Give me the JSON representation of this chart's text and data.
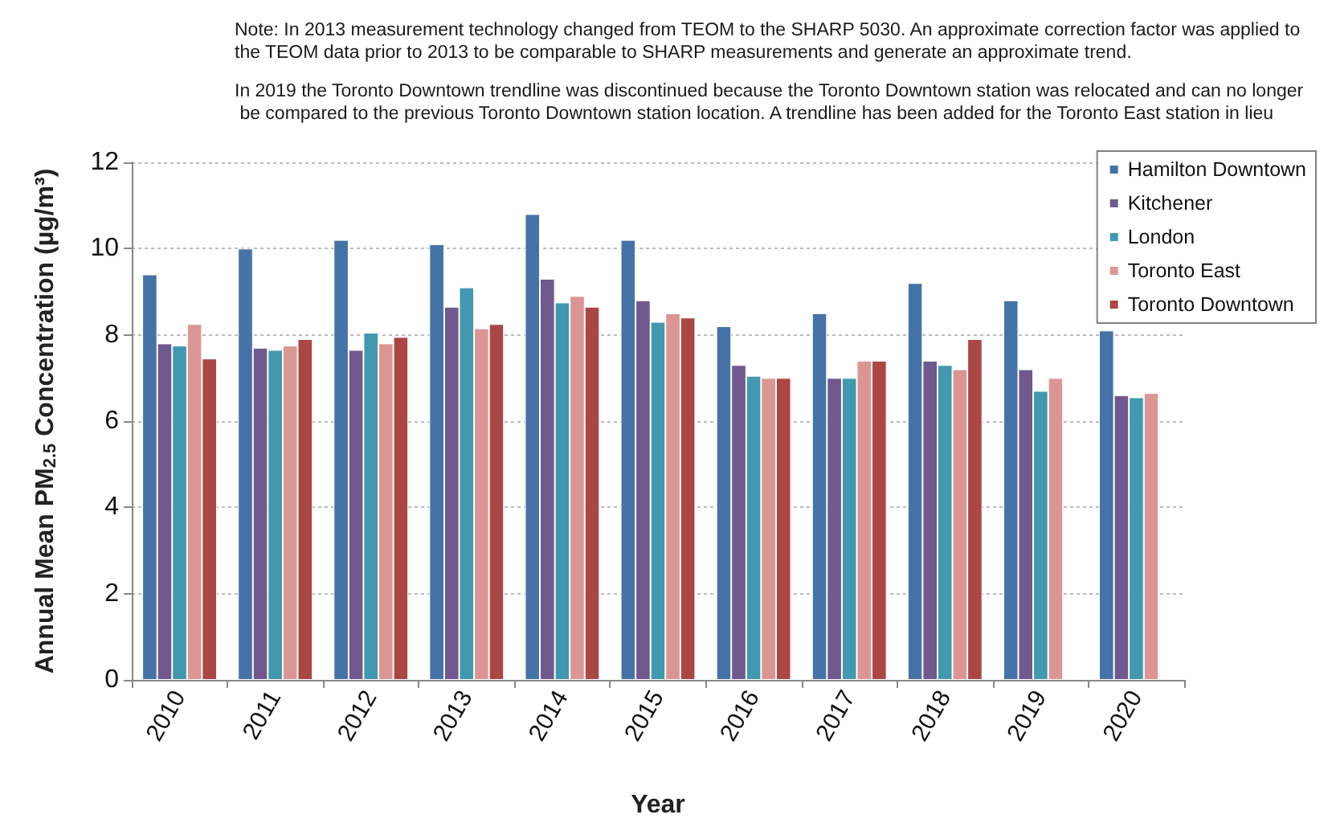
{
  "chart_data": {
    "type": "bar",
    "annotations": [
      "Note: In 2013 measurement technology changed from TEOM to the SHARP 5030. An approximate correction factor was applied to the TEOM data prior to 2013 to be comparable to SHARP measurements and generate an approximate trend.",
      "In 2019 the Toronto Downtown trendline was discontinued because the Toronto Downtown station was relocated and can no longer be compared to the previous Toronto Downtown station location. A trendline has been added for the Toronto East station in lieu"
    ],
    "xlabel": "Year",
    "ylabel": "Annual Mean PM$_{2.5}$ Concentration (µg/m³)",
    "categories": [
      "2010",
      "2011",
      "2012",
      "2013",
      "2014",
      "2015",
      "2016",
      "2017",
      "2018",
      "2019",
      "2020"
    ],
    "series": [
      {
        "name": "Hamilton Downtown",
        "color": "#4572a7",
        "values": [
          9.4,
          10.0,
          10.2,
          10.1,
          10.8,
          10.2,
          8.2,
          8.5,
          9.2,
          8.8,
          8.1
        ]
      },
      {
        "name": "Kitchener",
        "color": "#71588f",
        "values": [
          7.8,
          7.7,
          7.65,
          8.65,
          9.3,
          8.8,
          7.3,
          7.0,
          7.4,
          7.2,
          6.6
        ]
      },
      {
        "name": "London",
        "color": "#4198af",
        "values": [
          7.75,
          7.65,
          8.05,
          9.1,
          8.75,
          8.3,
          7.05,
          7.0,
          7.3,
          6.7,
          6.55
        ]
      },
      {
        "name": "Toronto East",
        "color": "#db9694",
        "values": [
          8.25,
          7.75,
          7.8,
          8.15,
          8.9,
          8.5,
          7.0,
          7.4,
          7.2,
          7.0,
          6.65
        ]
      },
      {
        "name": "Toronto Downtown",
        "color": "#aa4643",
        "values": [
          7.45,
          7.9,
          7.95,
          8.25,
          8.65,
          8.4,
          7.0,
          7.4,
          7.9,
          null,
          null
        ]
      }
    ],
    "ylim": [
      0,
      12
    ],
    "yticks": [
      0,
      2,
      4,
      6,
      8,
      10,
      12
    ],
    "grid": "y",
    "legend": "top right"
  }
}
